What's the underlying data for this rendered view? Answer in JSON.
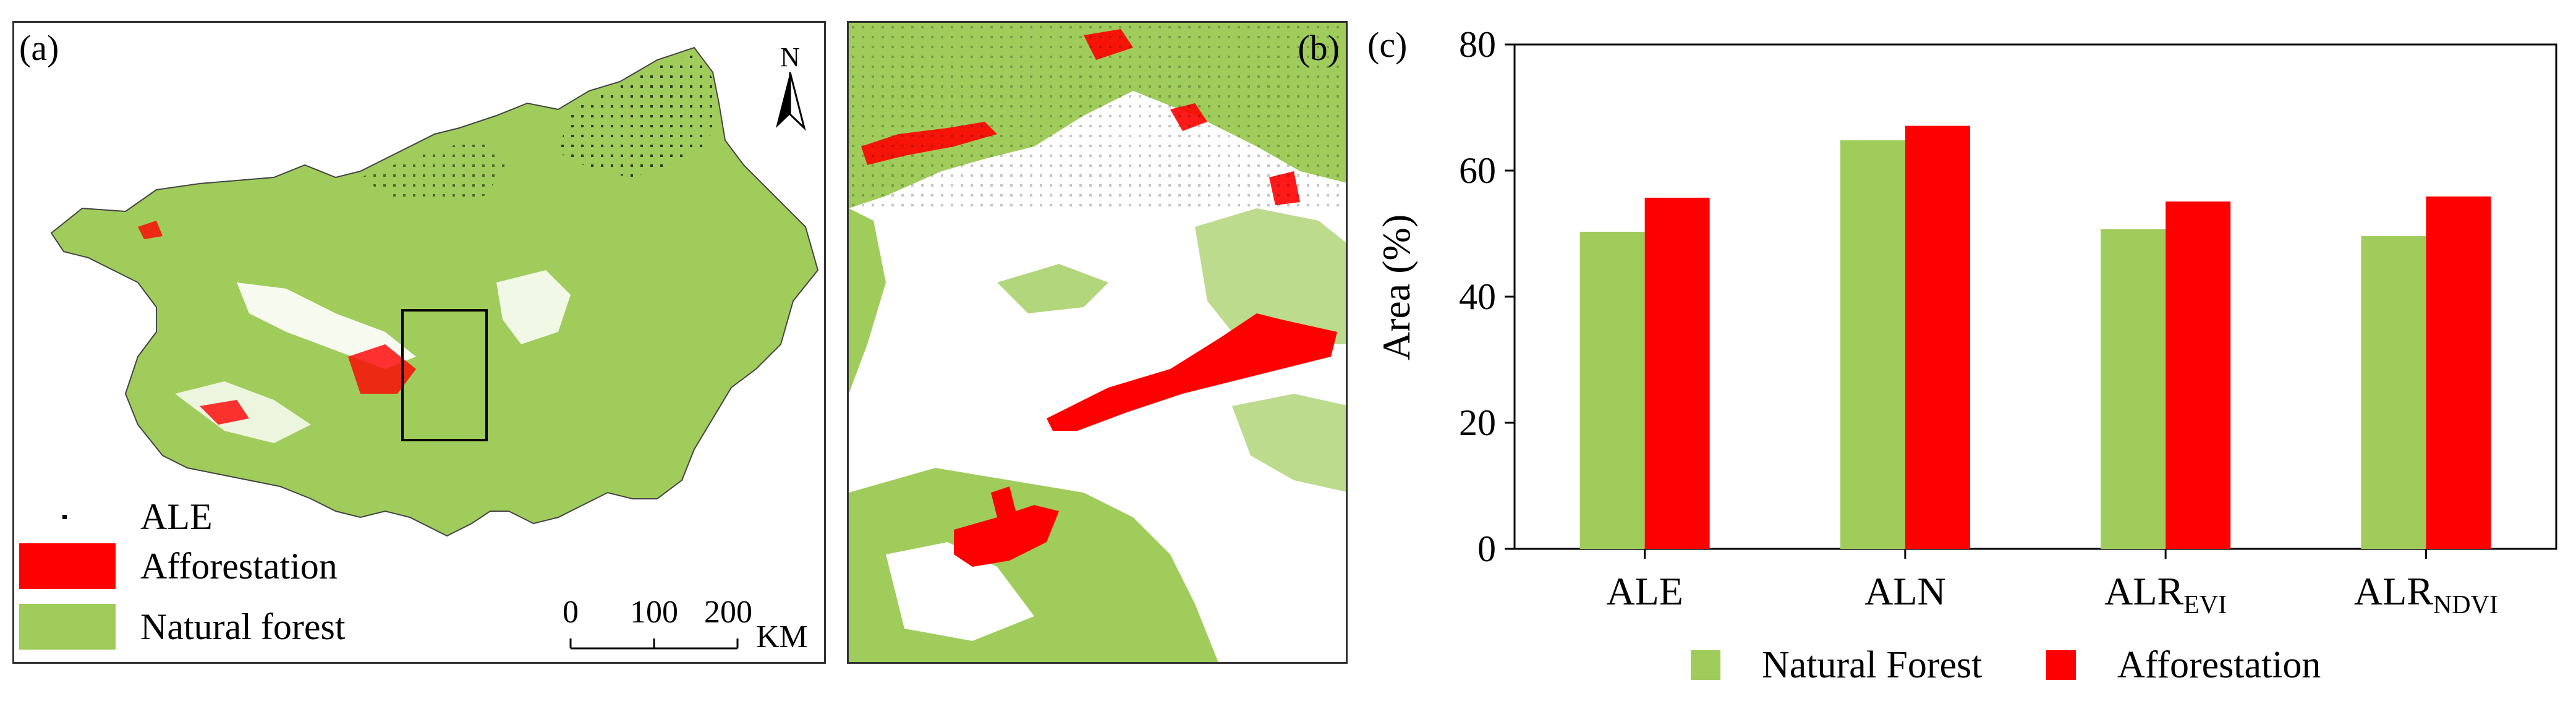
{
  "panels": {
    "a": {
      "label": "(a)"
    },
    "b": {
      "label": "(b)"
    },
    "c": {
      "label": "(c)"
    }
  },
  "map": {
    "north_label": "N",
    "scale_ticks": [
      "0",
      "100",
      "200"
    ],
    "scale_unit": "KM",
    "legend": [
      {
        "label": "ALE",
        "kind": "dot",
        "color": "#000000"
      },
      {
        "label": "Afforestation",
        "kind": "swatch",
        "color": "#FF0000"
      },
      {
        "label": "Natural forest",
        "kind": "swatch",
        "color": "#9FCC5B"
      }
    ]
  },
  "colors": {
    "natural_forest": "#9FCC5B",
    "afforestation": "#FF0000",
    "ale_dots": "#000000",
    "frame": "#333333"
  },
  "chart_data": {
    "type": "bar",
    "ylabel": "Area (%)",
    "ylim": [
      0,
      80
    ],
    "yticks": [
      "0",
      "20",
      "40",
      "60",
      "80"
    ],
    "categories": [
      {
        "base": "ALE",
        "sub": ""
      },
      {
        "base": "ALN",
        "sub": ""
      },
      {
        "base": "ALR",
        "sub": "EVI"
      },
      {
        "base": "ALR",
        "sub": "NDVI"
      }
    ],
    "series": [
      {
        "name": "Natural Forest",
        "color": "#9FCC5B",
        "values": [
          50.3,
          64.8,
          50.7,
          49.6
        ]
      },
      {
        "name": "Afforestation",
        "color": "#FF0000",
        "values": [
          55.7,
          67.1,
          55.1,
          55.9
        ]
      }
    ],
    "legend_position": "bottom",
    "grid": false
  }
}
